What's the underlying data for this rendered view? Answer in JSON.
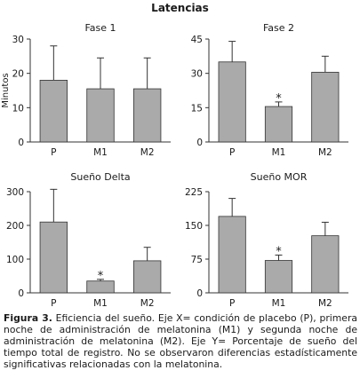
{
  "figure": {
    "title": "Latencias",
    "caption_label": "Figura 3.",
    "caption_text": " Eficiencia del sueño. Eje X= condición de placebo (P), primera noche de administración de melatonina (M1) y segunda noche de administración de melatonina (M2). Eje Y= Porcentaje de sueño del tiempo total de registro. No se observaron diferencias estadísticamente significativas relacionadas con la melatonina."
  },
  "colors": {
    "bar": "#aaaaaa",
    "bar_stroke": "#333333",
    "axis": "#333333",
    "text": "#1a1a1a"
  },
  "chart_data": [
    {
      "type": "bar",
      "title": "Fase 1",
      "ylabel": "Minutos",
      "categories": [
        "P",
        "M1",
        "M2"
      ],
      "values": [
        18,
        15.5,
        15.5
      ],
      "errors": [
        10,
        9,
        9
      ],
      "significance": [
        "",
        "",
        ""
      ],
      "ylim": [
        0,
        30
      ],
      "yticks": [
        0,
        10,
        20,
        30
      ]
    },
    {
      "type": "bar",
      "title": "Fase 2",
      "ylabel": "",
      "categories": [
        "P",
        "M1",
        "M2"
      ],
      "values": [
        35,
        15.5,
        30.5
      ],
      "errors": [
        9,
        2,
        7
      ],
      "significance": [
        "",
        "*",
        ""
      ],
      "ylim": [
        0,
        45
      ],
      "yticks": [
        0,
        15,
        30,
        45
      ]
    },
    {
      "type": "bar",
      "title": "Sueño Delta",
      "ylabel": "",
      "categories": [
        "P",
        "M1",
        "M2"
      ],
      "values": [
        210,
        35,
        95
      ],
      "errors": [
        97,
        5,
        40
      ],
      "significance": [
        "",
        "*",
        ""
      ],
      "ylim": [
        0,
        300
      ],
      "yticks": [
        0,
        100,
        200,
        300
      ]
    },
    {
      "type": "bar",
      "title": "Sueño MOR",
      "ylabel": "",
      "categories": [
        "P",
        "M1",
        "M2"
      ],
      "values": [
        170,
        72,
        127
      ],
      "errors": [
        40,
        12,
        30
      ],
      "significance": [
        "",
        "*",
        ""
      ],
      "ylim": [
        0,
        225
      ],
      "yticks": [
        0,
        75,
        150,
        225
      ]
    }
  ]
}
